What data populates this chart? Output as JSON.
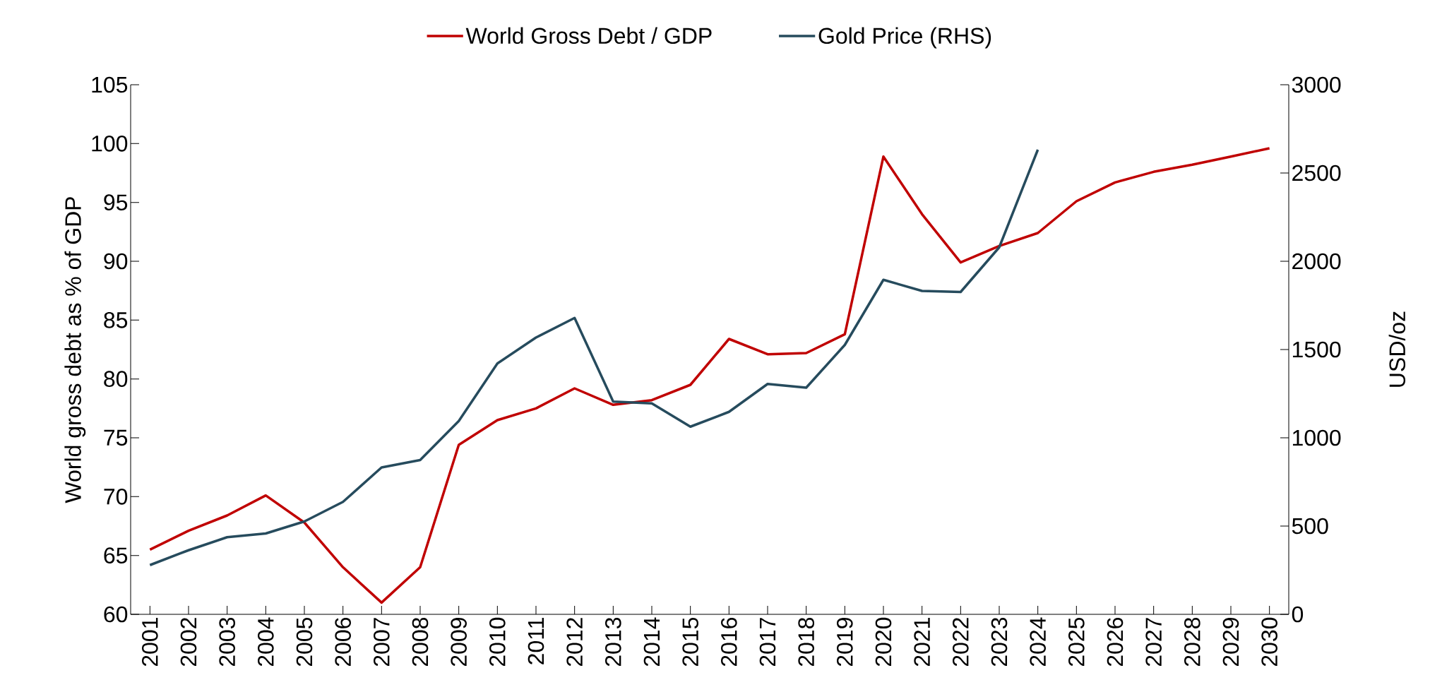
{
  "chart_data": {
    "type": "line",
    "categories": [
      "2001",
      "2002",
      "2003",
      "2004",
      "2005",
      "2006",
      "2007",
      "2008",
      "2009",
      "2010",
      "2011",
      "2012",
      "2013",
      "2014",
      "2015",
      "2016",
      "2017",
      "2018",
      "2019",
      "2020",
      "2021",
      "2022",
      "2023",
      "2024",
      "2025",
      "2026",
      "2027",
      "2028",
      "2029",
      "2030"
    ],
    "series": [
      {
        "name": "World Gross Debt / GDP",
        "color": "#c00000",
        "values": [
          65.5,
          67.1,
          68.4,
          70.1,
          67.8,
          64.0,
          61.0,
          64.0,
          74.4,
          76.5,
          77.5,
          79.2,
          77.8,
          78.2,
          79.5,
          83.4,
          82.1,
          82.2,
          83.8,
          98.9,
          94.0,
          89.9,
          91.3,
          92.4,
          95.1,
          96.7,
          97.6,
          98.2,
          98.9,
          99.6
        ]
      },
      {
        "name": "Gold Price (RHS)",
        "color": "#264b5d",
        "axis": "y2",
        "values": [
          279,
          363,
          437,
          458,
          526,
          637,
          832,
          874,
          1095,
          1421,
          1568,
          1679,
          1205,
          1195,
          1063,
          1147,
          1305,
          1284,
          1526,
          1895,
          1832,
          1826,
          2079,
          2632,
          null,
          null,
          null,
          null,
          null,
          null
        ]
      }
    ],
    "ylabel": "World gross debt as % of GDP",
    "y2label": "USD/oz",
    "ylim": [
      60,
      105
    ],
    "yticks": [
      60,
      65,
      70,
      75,
      80,
      85,
      90,
      95,
      100,
      105
    ],
    "y2lim": [
      0,
      3000
    ],
    "y2ticks": [
      0,
      500,
      1000,
      1500,
      2000,
      2500,
      3000
    ],
    "legend": "top",
    "grid": false
  }
}
